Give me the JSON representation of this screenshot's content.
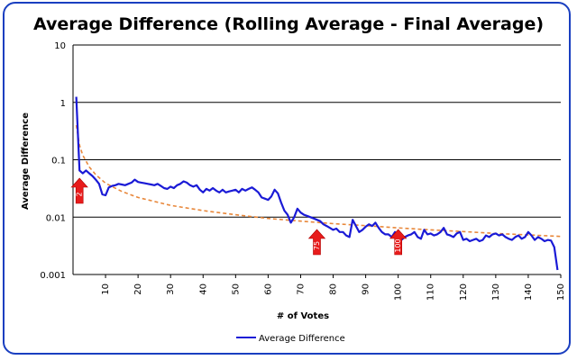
{
  "chart_data": {
    "type": "line",
    "title": "Average Difference (Rolling Average - Final Average)",
    "xlabel": "# of Votes",
    "ylabel": "Average Difference",
    "xlim": [
      0,
      150
    ],
    "ylim": [
      0.001,
      10
    ],
    "yscale": "log",
    "x_ticks": [
      10,
      20,
      30,
      40,
      50,
      60,
      70,
      80,
      90,
      100,
      110,
      120,
      130,
      140,
      150
    ],
    "y_ticks": [
      {
        "value": 0.001,
        "label": "0.001"
      },
      {
        "value": 0.01,
        "label": "0.01"
      },
      {
        "value": 0.1,
        "label": "0.1"
      },
      {
        "value": 1,
        "label": "1"
      },
      {
        "value": 10,
        "label": "10"
      }
    ],
    "grid": "horizontal",
    "legend_position": "bottom",
    "series": [
      {
        "name": "Average Difference",
        "color": "#1a1ad6",
        "style": "solid",
        "x": [
          1,
          2,
          3,
          4,
          5,
          6,
          7,
          8,
          9,
          10,
          11,
          12,
          13,
          14,
          15,
          16,
          17,
          18,
          19,
          20,
          21,
          22,
          23,
          24,
          25,
          26,
          27,
          28,
          29,
          30,
          31,
          32,
          33,
          34,
          35,
          36,
          37,
          38,
          39,
          40,
          41,
          42,
          43,
          44,
          45,
          46,
          47,
          48,
          49,
          50,
          51,
          52,
          53,
          54,
          55,
          56,
          57,
          58,
          59,
          60,
          61,
          62,
          63,
          64,
          65,
          66,
          67,
          68,
          69,
          70,
          71,
          72,
          73,
          74,
          75,
          76,
          77,
          78,
          79,
          80,
          81,
          82,
          83,
          84,
          85,
          86,
          87,
          88,
          89,
          90,
          91,
          92,
          93,
          94,
          95,
          96,
          97,
          98,
          99,
          100,
          101,
          102,
          103,
          104,
          105,
          106,
          107,
          108,
          109,
          110,
          111,
          112,
          113,
          114,
          115,
          116,
          117,
          118,
          119,
          120,
          121,
          122,
          123,
          124,
          125,
          126,
          127,
          128,
          129,
          130,
          131,
          132,
          133,
          134,
          135,
          136,
          137,
          138,
          139,
          140,
          141,
          142,
          143,
          144,
          145,
          146,
          147,
          148,
          149
        ],
        "values": [
          1.25,
          0.065,
          0.058,
          0.065,
          0.058,
          0.052,
          0.045,
          0.038,
          0.025,
          0.024,
          0.033,
          0.035,
          0.036,
          0.038,
          0.037,
          0.036,
          0.038,
          0.04,
          0.045,
          0.041,
          0.04,
          0.039,
          0.038,
          0.037,
          0.036,
          0.038,
          0.035,
          0.032,
          0.031,
          0.034,
          0.032,
          0.036,
          0.038,
          0.042,
          0.04,
          0.036,
          0.034,
          0.036,
          0.03,
          0.027,
          0.031,
          0.029,
          0.032,
          0.029,
          0.027,
          0.03,
          0.027,
          0.028,
          0.029,
          0.03,
          0.027,
          0.031,
          0.029,
          0.031,
          0.033,
          0.03,
          0.027,
          0.022,
          0.021,
          0.02,
          0.023,
          0.03,
          0.026,
          0.018,
          0.013,
          0.011,
          0.008,
          0.01,
          0.014,
          0.012,
          0.011,
          0.0105,
          0.01,
          0.0095,
          0.009,
          0.0085,
          0.0075,
          0.007,
          0.0065,
          0.006,
          0.0063,
          0.0055,
          0.0055,
          0.0048,
          0.0045,
          0.009,
          0.007,
          0.0055,
          0.006,
          0.0068,
          0.0075,
          0.007,
          0.008,
          0.0065,
          0.0055,
          0.005,
          0.005,
          0.0045,
          0.0055,
          0.0042,
          0.004,
          0.0045,
          0.0048,
          0.005,
          0.0055,
          0.0045,
          0.0042,
          0.006,
          0.005,
          0.0052,
          0.0048,
          0.005,
          0.0055,
          0.0065,
          0.005,
          0.0048,
          0.0045,
          0.0052,
          0.0055,
          0.004,
          0.0042,
          0.0038,
          0.004,
          0.0042,
          0.0038,
          0.004,
          0.0048,
          0.0045,
          0.005,
          0.0052,
          0.0048,
          0.005,
          0.0045,
          0.0042,
          0.004,
          0.0045,
          0.0048,
          0.0042,
          0.0045,
          0.0055,
          0.0048,
          0.004,
          0.0045,
          0.0042,
          0.0038,
          0.004,
          0.0039,
          0.003,
          0.0012
        ]
      },
      {
        "name": "",
        "color": "#e8873a",
        "style": "dashed",
        "trendline": "power",
        "x": [
          1,
          2,
          3,
          4,
          5,
          7,
          10,
          15,
          20,
          30,
          40,
          50,
          60,
          70,
          80,
          90,
          100,
          110,
          120,
          130,
          140,
          150
        ],
        "values": [
          0.4,
          0.18,
          0.12,
          0.095,
          0.075,
          0.055,
          0.039,
          0.028,
          0.022,
          0.016,
          0.013,
          0.011,
          0.0095,
          0.0085,
          0.0077,
          0.0071,
          0.0065,
          0.006,
          0.0056,
          0.0052,
          0.0049,
          0.0046
        ]
      }
    ],
    "annotations": [
      {
        "label": "2",
        "x": 2
      },
      {
        "label": "75",
        "x": 75
      },
      {
        "label": "100",
        "x": 100
      }
    ]
  }
}
